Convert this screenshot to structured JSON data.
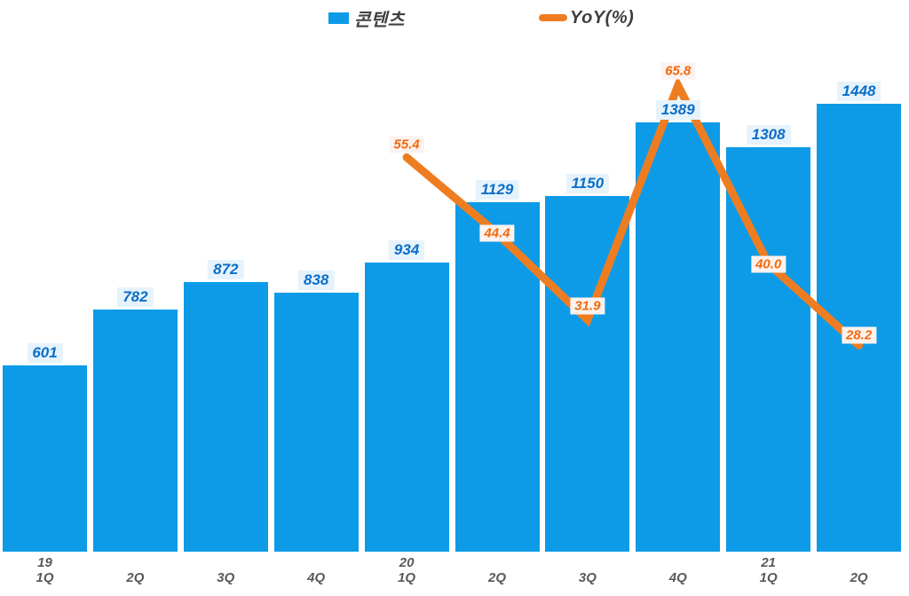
{
  "legend": {
    "bar_label": "콘텐츠",
    "line_label": "YoY(%)"
  },
  "colors": {
    "bar": "#0d9be8",
    "bar_value_text": "#0b6ec8",
    "line": "#ee7d22",
    "line_value_text": "#f2690c",
    "axis_text": "#595959",
    "legend_text": "#3f3f3f",
    "bar_label_bg": "#e6f3fc",
    "line_label_bg": "#fcf2ef",
    "background": "#ffffff"
  },
  "chart_data": {
    "type": "bar+line combo",
    "title": "",
    "xlabel": "",
    "ylabel": "",
    "gridlines": false,
    "axes_lines_visible": false,
    "legend_position": "top",
    "categories": [
      {
        "year": "19",
        "quarter": "1Q"
      },
      {
        "year": "",
        "quarter": "2Q"
      },
      {
        "year": "",
        "quarter": "3Q"
      },
      {
        "year": "",
        "quarter": "4Q"
      },
      {
        "year": "20",
        "quarter": "1Q"
      },
      {
        "year": "",
        "quarter": "2Q"
      },
      {
        "year": "",
        "quarter": "3Q"
      },
      {
        "year": "",
        "quarter": "4Q"
      },
      {
        "year": "21",
        "quarter": "1Q"
      },
      {
        "year": "",
        "quarter": "2Q"
      }
    ],
    "series": [
      {
        "name": "콘텐츠",
        "type": "bar",
        "values": [
          601,
          782,
          872,
          838,
          934,
          1129,
          1150,
          1389,
          1308,
          1448
        ]
      },
      {
        "name": "YoY(%)",
        "type": "line",
        "values": [
          null,
          null,
          null,
          null,
          55.4,
          44.4,
          31.9,
          65.8,
          40.0,
          28.2
        ]
      }
    ],
    "value_labels_shown": true
  }
}
